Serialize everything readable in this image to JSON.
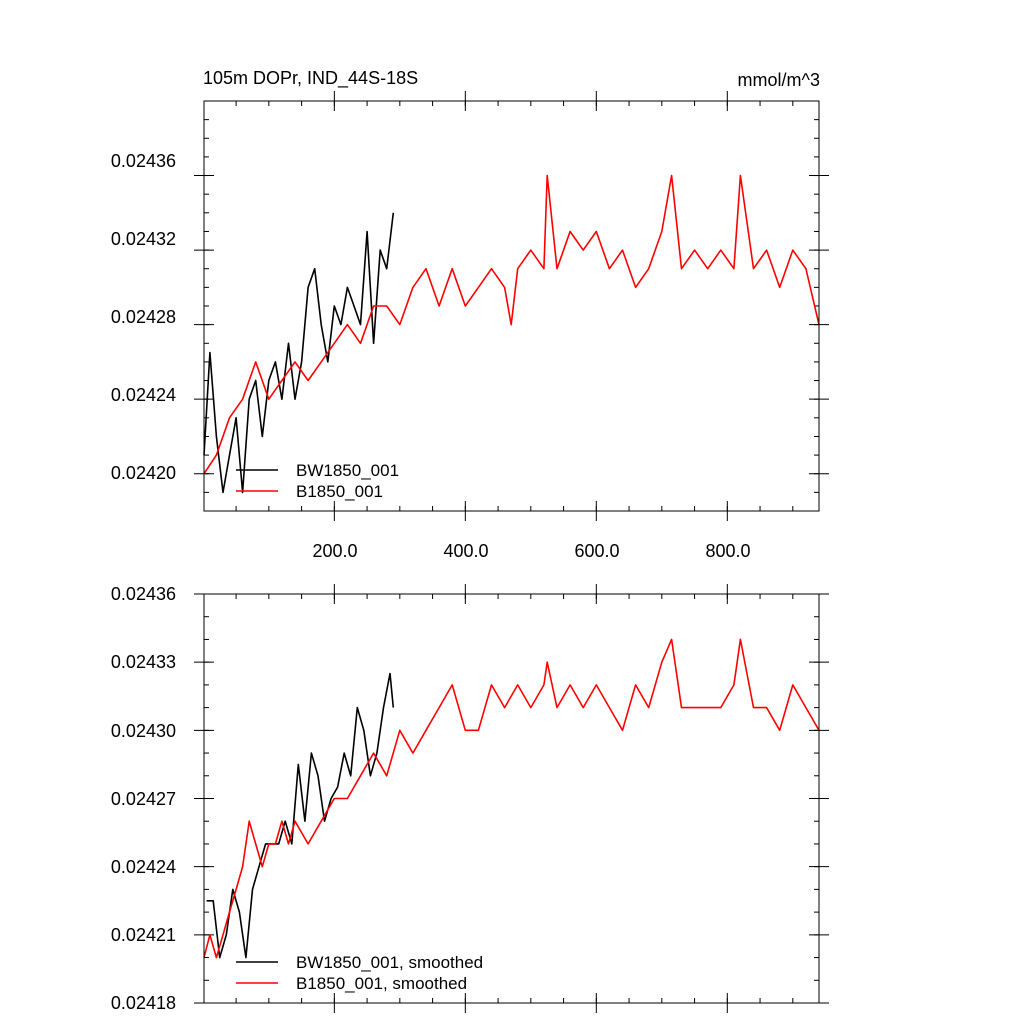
{
  "chart_data": [
    {
      "type": "line",
      "title": "105m DOPr, IND_44S-18S",
      "units": "mmol/m^3",
      "xlabel": "",
      "ylabel": "",
      "xlim": [
        1,
        940
      ],
      "ylim": [
        0.02418,
        0.0244
      ],
      "x_ticks": [
        "200.0",
        "400.0",
        "600.0",
        "800.0"
      ],
      "y_ticks": [
        "0.02420",
        "0.02424",
        "0.02428",
        "0.02432",
        "0.02436"
      ],
      "legend_position": "bottom-left",
      "series": [
        {
          "name": "BW1850_001",
          "color": "#000000",
          "x": [
            1,
            10,
            20,
            30,
            40,
            50,
            60,
            70,
            80,
            90,
            100,
            110,
            120,
            130,
            140,
            150,
            160,
            170,
            180,
            190,
            200,
            210,
            220,
            230,
            240,
            250,
            260,
            270,
            280,
            290
          ],
          "values": [
            0.02421,
            0.024265,
            0.02422,
            0.02419,
            0.02421,
            0.02423,
            0.02419,
            0.02424,
            0.02425,
            0.02422,
            0.02425,
            0.02426,
            0.02424,
            0.02427,
            0.02424,
            0.02426,
            0.0243,
            0.02431,
            0.02428,
            0.02426,
            0.02429,
            0.02428,
            0.0243,
            0.02429,
            0.02428,
            0.02433,
            0.02427,
            0.02432,
            0.02431,
            0.02434
          ]
        },
        {
          "name": "B1850_001",
          "color": "#ff0000",
          "x": [
            1,
            20,
            40,
            60,
            80,
            100,
            120,
            140,
            160,
            180,
            200,
            220,
            240,
            260,
            280,
            300,
            320,
            340,
            360,
            380,
            400,
            420,
            440,
            460,
            470,
            480,
            500,
            520,
            525,
            540,
            560,
            580,
            600,
            620,
            640,
            660,
            680,
            700,
            715,
            730,
            750,
            770,
            790,
            810,
            820,
            840,
            860,
            880,
            900,
            920,
            940
          ],
          "values": [
            0.0242,
            0.02421,
            0.02423,
            0.02424,
            0.02426,
            0.02424,
            0.02425,
            0.02426,
            0.02425,
            0.02426,
            0.02427,
            0.02428,
            0.02427,
            0.02429,
            0.02429,
            0.02428,
            0.0243,
            0.02431,
            0.02429,
            0.02431,
            0.02429,
            0.0243,
            0.02431,
            0.0243,
            0.02428,
            0.02431,
            0.02432,
            0.02431,
            0.02436,
            0.02431,
            0.02433,
            0.02432,
            0.02433,
            0.02431,
            0.02432,
            0.0243,
            0.02431,
            0.02433,
            0.02436,
            0.02431,
            0.02432,
            0.02431,
            0.02432,
            0.02431,
            0.02436,
            0.02431,
            0.02432,
            0.0243,
            0.02432,
            0.02431,
            0.02428
          ]
        }
      ]
    },
    {
      "type": "line",
      "title": "",
      "xlabel": "",
      "ylabel": "",
      "xlim": [
        1,
        940
      ],
      "ylim": [
        0.02418,
        0.02436
      ],
      "x_ticks": [],
      "y_ticks": [
        "0.02418",
        "0.02421",
        "0.02424",
        "0.02427",
        "0.02430",
        "0.02433",
        "0.02436"
      ],
      "legend_position": "bottom-left",
      "series": [
        {
          "name": "BW1850_001, smoothed",
          "color": "#000000",
          "x": [
            5,
            15,
            25,
            35,
            45,
            55,
            65,
            75,
            85,
            95,
            105,
            115,
            125,
            135,
            145,
            155,
            165,
            175,
            185,
            195,
            205,
            215,
            225,
            235,
            245,
            255,
            265,
            275,
            285,
            290
          ],
          "values": [
            0.024225,
            0.024225,
            0.0242,
            0.02421,
            0.02423,
            0.02422,
            0.0242,
            0.02423,
            0.02424,
            0.02425,
            0.02425,
            0.02425,
            0.02426,
            0.02425,
            0.024285,
            0.02426,
            0.02429,
            0.02428,
            0.02426,
            0.02427,
            0.024275,
            0.02429,
            0.02428,
            0.02431,
            0.0243,
            0.02428,
            0.02429,
            0.02431,
            0.024325,
            0.02431
          ]
        },
        {
          "name": "B1850_001, smoothed",
          "color": "#ff0000",
          "x": [
            1,
            10,
            20,
            30,
            40,
            50,
            60,
            70,
            80,
            90,
            100,
            110,
            120,
            130,
            140,
            160,
            180,
            200,
            220,
            240,
            260,
            280,
            300,
            320,
            340,
            360,
            380,
            400,
            420,
            440,
            460,
            480,
            500,
            520,
            525,
            540,
            560,
            580,
            600,
            620,
            640,
            660,
            680,
            700,
            715,
            730,
            750,
            770,
            790,
            810,
            820,
            840,
            860,
            880,
            900,
            920,
            940
          ],
          "values": [
            0.0242,
            0.02421,
            0.0242,
            0.02421,
            0.02422,
            0.02423,
            0.02424,
            0.02426,
            0.02425,
            0.02424,
            0.02425,
            0.02425,
            0.02426,
            0.02425,
            0.02426,
            0.02425,
            0.02426,
            0.02427,
            0.02427,
            0.02428,
            0.02429,
            0.02428,
            0.0243,
            0.02429,
            0.0243,
            0.02431,
            0.02432,
            0.0243,
            0.0243,
            0.02432,
            0.02431,
            0.02432,
            0.02431,
            0.02432,
            0.02433,
            0.02431,
            0.02432,
            0.02431,
            0.02432,
            0.02431,
            0.0243,
            0.02432,
            0.02431,
            0.02433,
            0.02434,
            0.02431,
            0.02431,
            0.02431,
            0.02431,
            0.02432,
            0.02434,
            0.02431,
            0.02431,
            0.0243,
            0.02432,
            0.02431,
            0.0243
          ]
        }
      ]
    }
  ]
}
